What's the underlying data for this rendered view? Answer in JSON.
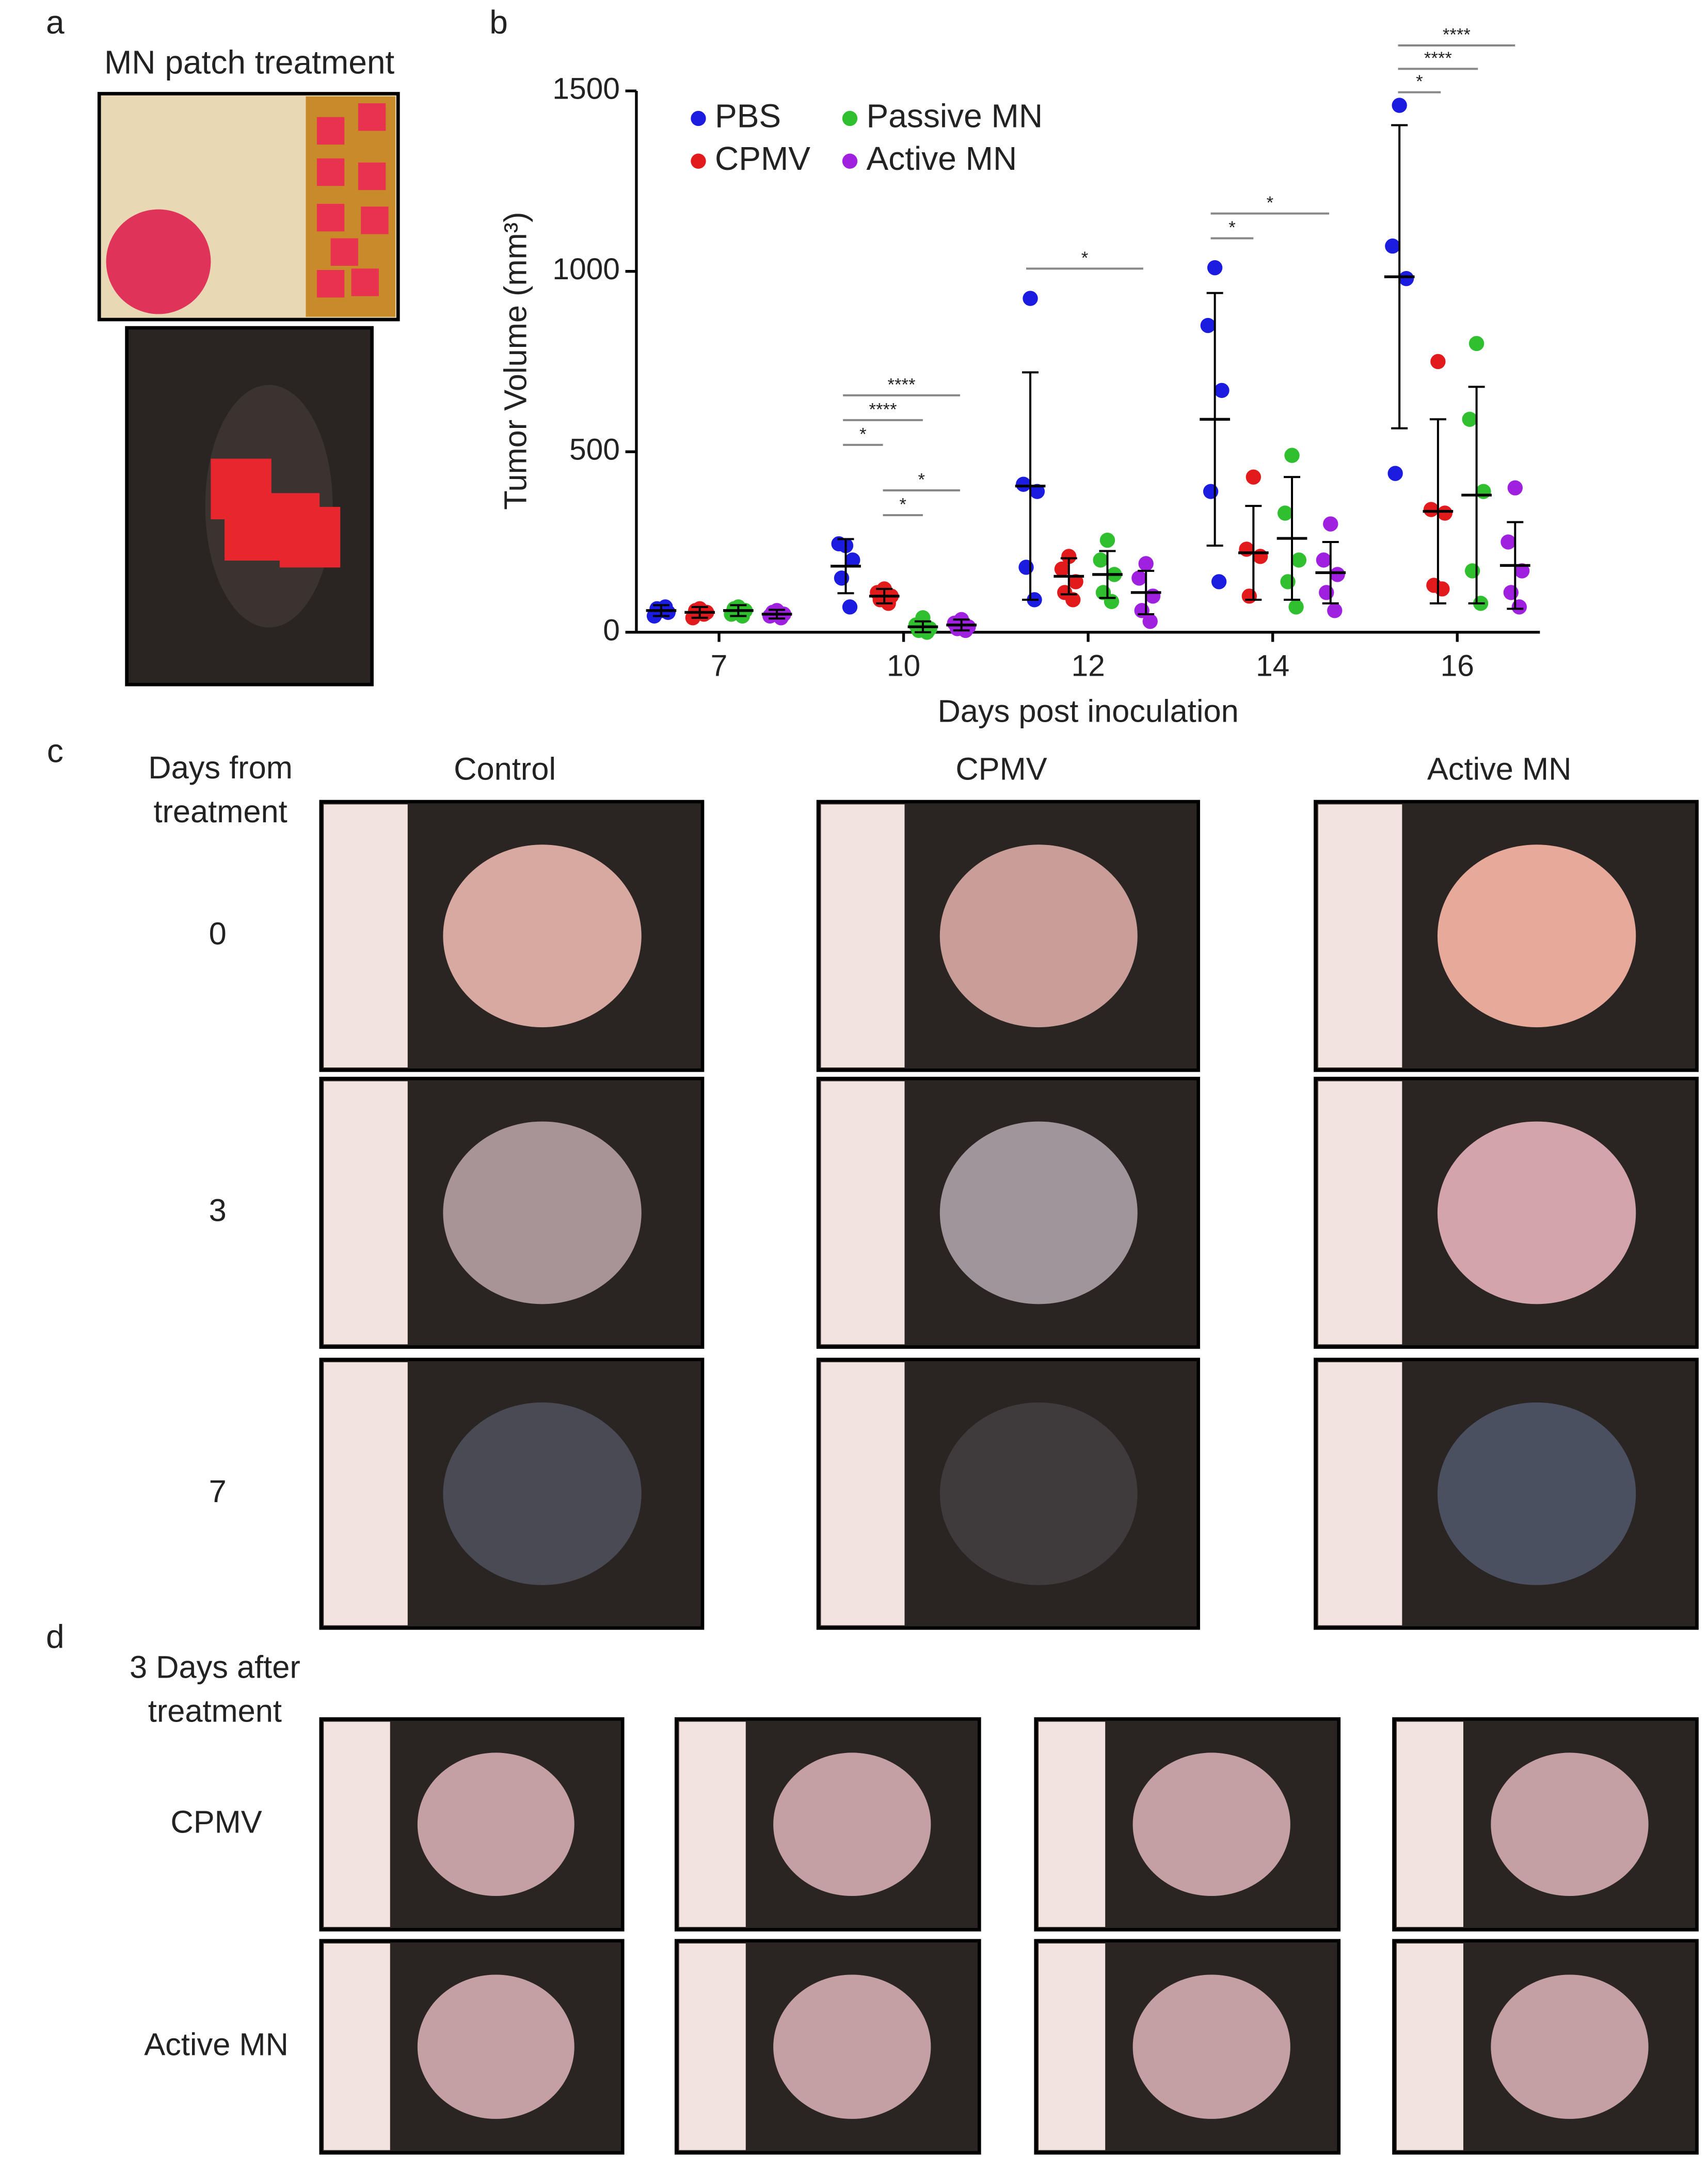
{
  "panel_labels": [
    "a",
    "b",
    "c",
    "d"
  ],
  "panel_a": {
    "title": "MN patch treatment"
  },
  "chart_data": {
    "type": "scatter",
    "xlabel": "Days post inoculation",
    "ylabel": "Tumor Volume (mm³)",
    "categories": [
      "7",
      "10",
      "12",
      "14",
      "16"
    ],
    "ylim": [
      0,
      1500
    ],
    "yticks": [
      0,
      500,
      1000,
      1500
    ],
    "series": [
      {
        "name": "PBS",
        "color": "#1c1ce0",
        "points": [
          [
            60,
            45,
            55,
            65,
            70
          ],
          [
            240,
            245,
            200,
            150,
            70
          ],
          [
            925,
            410,
            390,
            180,
            90
          ],
          [
            1010,
            850,
            670,
            390,
            140
          ],
          [
            1460,
            1070,
            980,
            440
          ]
        ],
        "mean": [
          60,
          183,
          405,
          590,
          985
        ],
        "sd": [
          15,
          75,
          315,
          350,
          420
        ]
      },
      {
        "name": "CPMV",
        "color": "#e31a1c",
        "points": [
          [
            65,
            40,
            55,
            60,
            50
          ],
          [
            120,
            110,
            100,
            90,
            80
          ],
          [
            210,
            175,
            140,
            110,
            90
          ],
          [
            430,
            230,
            210,
            100
          ],
          [
            750,
            340,
            330,
            130,
            120
          ]
        ],
        "mean": [
          55,
          100,
          155,
          220,
          335
        ],
        "sd": [
          15,
          20,
          50,
          130,
          255
        ]
      },
      {
        "name": "Passive MN",
        "color": "#2fbf2f",
        "points": [
          [
            70,
            50,
            60,
            65,
            45
          ],
          [
            40,
            20,
            10,
            5,
            0
          ],
          [
            255,
            200,
            160,
            110,
            85
          ],
          [
            490,
            330,
            200,
            140,
            70
          ],
          [
            800,
            590,
            390,
            170,
            80
          ]
        ],
        "mean": [
          60,
          15,
          160,
          260,
          380
        ],
        "sd": [
          15,
          15,
          65,
          170,
          300
        ]
      },
      {
        "name": "Active MN",
        "color": "#a020e0",
        "points": [
          [
            60,
            45,
            50,
            55,
            40
          ],
          [
            35,
            25,
            15,
            10,
            5
          ],
          [
            190,
            150,
            100,
            60,
            30
          ],
          [
            300,
            200,
            160,
            110,
            60
          ],
          [
            400,
            250,
            170,
            110,
            70
          ]
        ],
        "mean": [
          50,
          20,
          110,
          165,
          185
        ],
        "sd": [
          12,
          15,
          60,
          85,
          120
        ]
      }
    ],
    "annotations": [
      "****",
      "****",
      "*",
      "*",
      "*",
      "*",
      "*",
      "*",
      "****",
      "****",
      "*"
    ]
  },
  "panel_c": {
    "row_header": [
      "Days from",
      "treatment"
    ],
    "columns": [
      "Control",
      "CPMV",
      "Active MN"
    ],
    "rows": [
      "0",
      "3",
      "7"
    ]
  },
  "panel_d": {
    "header": [
      "3 Days after",
      "treatment"
    ],
    "rows": [
      "CPMV",
      "Active MN"
    ]
  }
}
